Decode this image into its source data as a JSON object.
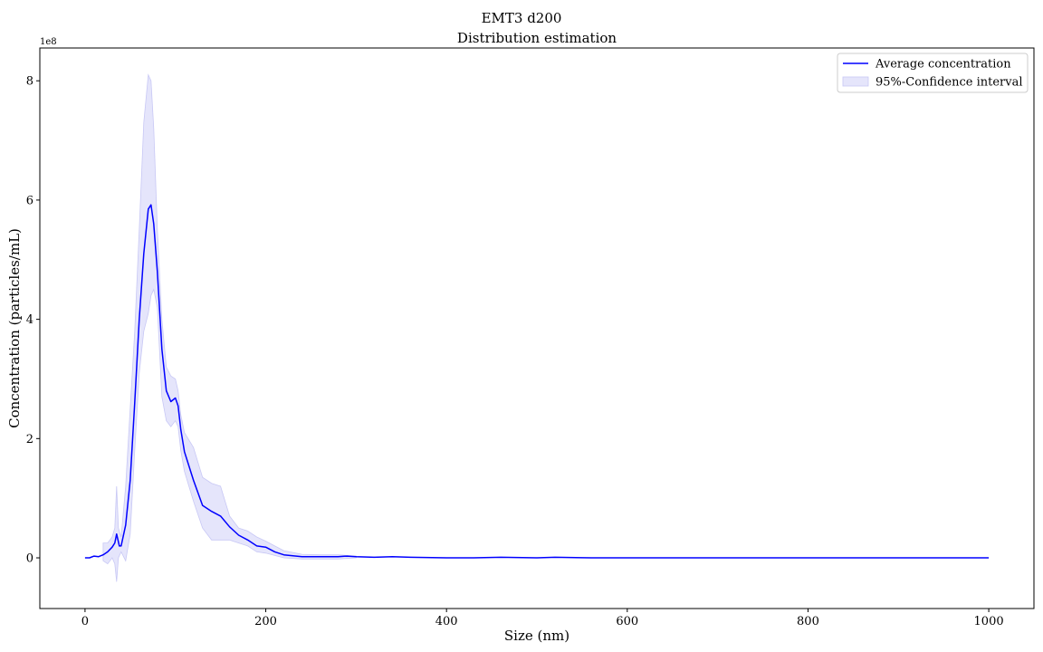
{
  "chart_data": {
    "type": "line",
    "suptitle": "EMT3 d200",
    "title": "Distribution estimation",
    "xlabel": "Size (nm)",
    "ylabel": "Concentration (particles/mL)",
    "y_offset_label": "1e8",
    "xlim": [
      -50,
      1050
    ],
    "ylim": [
      -0.85,
      8.55
    ],
    "y_scale": 100000000,
    "xticks": [
      0,
      200,
      400,
      600,
      800,
      1000
    ],
    "yticks": [
      0,
      2,
      4,
      6,
      8
    ],
    "xtick_labels": [
      "0",
      "200",
      "400",
      "600",
      "800",
      "1000"
    ],
    "ytick_labels": [
      "0",
      "2",
      "4",
      "6",
      "8"
    ],
    "grid": false,
    "legend_position": "top-right",
    "colors": {
      "line": "#0000ff",
      "band": "#e5e5fb",
      "band_edge": "#c8c8f5"
    },
    "series": [
      {
        "name": "Average concentration",
        "x": [
          0,
          5,
          10,
          15,
          20,
          25,
          30,
          33,
          35,
          38,
          40,
          45,
          50,
          55,
          60,
          65,
          70,
          73,
          76,
          80,
          85,
          90,
          95,
          100,
          103,
          106,
          110,
          120,
          130,
          140,
          150,
          160,
          170,
          180,
          190,
          200,
          210,
          220,
          240,
          260,
          280,
          290,
          300,
          320,
          340,
          360,
          400,
          430,
          460,
          500,
          520,
          560,
          600,
          700,
          800,
          900,
          1000
        ],
        "y": [
          0.0,
          0.0,
          0.03,
          0.02,
          0.05,
          0.1,
          0.18,
          0.25,
          0.4,
          0.2,
          0.2,
          0.55,
          1.3,
          2.6,
          4.0,
          5.1,
          5.85,
          5.92,
          5.6,
          4.8,
          3.5,
          2.8,
          2.62,
          2.68,
          2.55,
          2.15,
          1.78,
          1.3,
          0.88,
          0.78,
          0.7,
          0.52,
          0.38,
          0.3,
          0.2,
          0.18,
          0.1,
          0.05,
          0.02,
          0.02,
          0.02,
          0.03,
          0.02,
          0.01,
          0.02,
          0.01,
          0.0,
          0.0,
          0.01,
          0.0,
          0.01,
          0.0,
          0.0,
          0.0,
          0.0,
          0.0,
          0.0
        ]
      },
      {
        "name": "95%-Confidence interval",
        "type": "band",
        "x": [
          20,
          25,
          30,
          33,
          35,
          37,
          40,
          45,
          50,
          55,
          60,
          65,
          70,
          73,
          76,
          80,
          85,
          90,
          95,
          100,
          103,
          106,
          110,
          120,
          130,
          140,
          150,
          160,
          170,
          180,
          190,
          200,
          210,
          220,
          240,
          260,
          280,
          300
        ],
        "lower": [
          -0.05,
          -0.1,
          0.0,
          -0.1,
          -0.4,
          0.0,
          0.1,
          -0.05,
          0.4,
          1.8,
          3.1,
          3.8,
          4.1,
          4.4,
          4.5,
          4.2,
          2.7,
          2.3,
          2.2,
          2.3,
          2.2,
          1.8,
          1.45,
          0.95,
          0.5,
          0.3,
          0.3,
          0.3,
          0.25,
          0.2,
          0.1,
          0.08,
          0.04,
          0.0,
          -0.02,
          -0.02,
          -0.02,
          0.0
        ],
        "upper": [
          0.25,
          0.25,
          0.35,
          0.5,
          1.2,
          0.5,
          0.35,
          1.2,
          2.5,
          3.8,
          5.5,
          7.3,
          8.1,
          8.0,
          7.2,
          5.5,
          4.0,
          3.2,
          3.05,
          3.0,
          2.8,
          2.4,
          2.1,
          1.85,
          1.35,
          1.25,
          1.2,
          0.7,
          0.5,
          0.45,
          0.35,
          0.28,
          0.2,
          0.12,
          0.06,
          0.05,
          0.05,
          0.03
        ]
      }
    ]
  }
}
